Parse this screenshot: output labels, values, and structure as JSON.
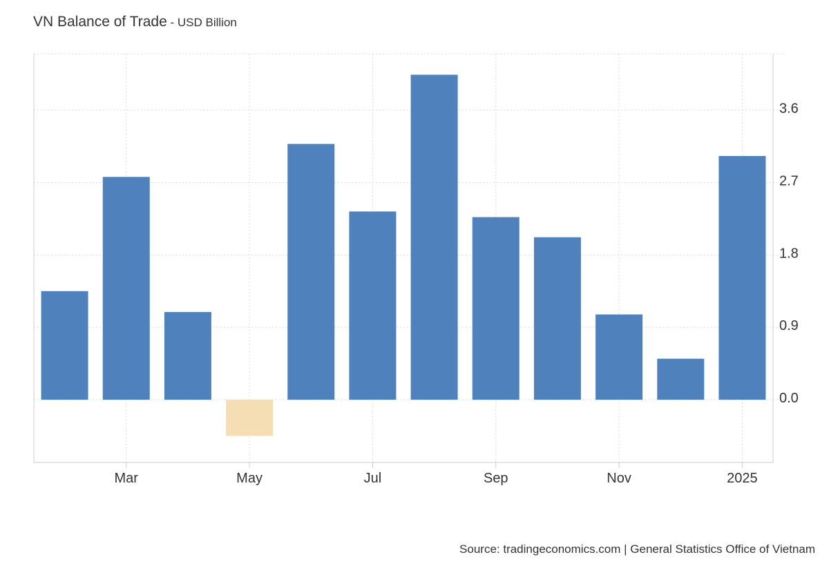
{
  "header": {
    "title": "VN Balance of Trade",
    "separator": " - ",
    "unit": "USD Billion"
  },
  "footer": {
    "source": "Source: tradingeconomics.com | General Statistics Office of Vietnam"
  },
  "colors": {
    "positive": "#4f81bd",
    "negative": "#f5deb3",
    "grid": "#d9d9d9",
    "axis": "#cccccc"
  },
  "chart_data": {
    "type": "bar",
    "title": "VN Balance of Trade",
    "subtitle": "USD Billion",
    "xlabel": "",
    "ylabel": "",
    "categories": [
      "2024-02",
      "2024-03",
      "2024-04",
      "2024-05",
      "2024-06",
      "2024-07",
      "2024-08",
      "2024-09",
      "2024-10",
      "2024-11",
      "2024-12",
      "2025-01"
    ],
    "values": [
      1.35,
      2.77,
      1.09,
      -0.45,
      3.18,
      2.34,
      4.04,
      2.27,
      2.02,
      1.06,
      0.51,
      3.03
    ],
    "x_tick_labels": [
      {
        "category": "2024-03",
        "label": "Mar"
      },
      {
        "category": "2024-05",
        "label": "May"
      },
      {
        "category": "2024-07",
        "label": "Jul"
      },
      {
        "category": "2024-09",
        "label": "Sep"
      },
      {
        "category": "2024-11",
        "label": "Nov"
      },
      {
        "category": "2025-01",
        "label": "2025"
      }
    ],
    "y_ticks": [
      0.0,
      0.9,
      1.8,
      2.7,
      3.6
    ],
    "y_tick_labels": [
      "0.0",
      "0.9",
      "1.8",
      "2.7",
      "3.6"
    ],
    "ylim": [
      -0.78,
      4.3
    ],
    "y_axis_side": "right",
    "grid": true,
    "legend": "none"
  }
}
